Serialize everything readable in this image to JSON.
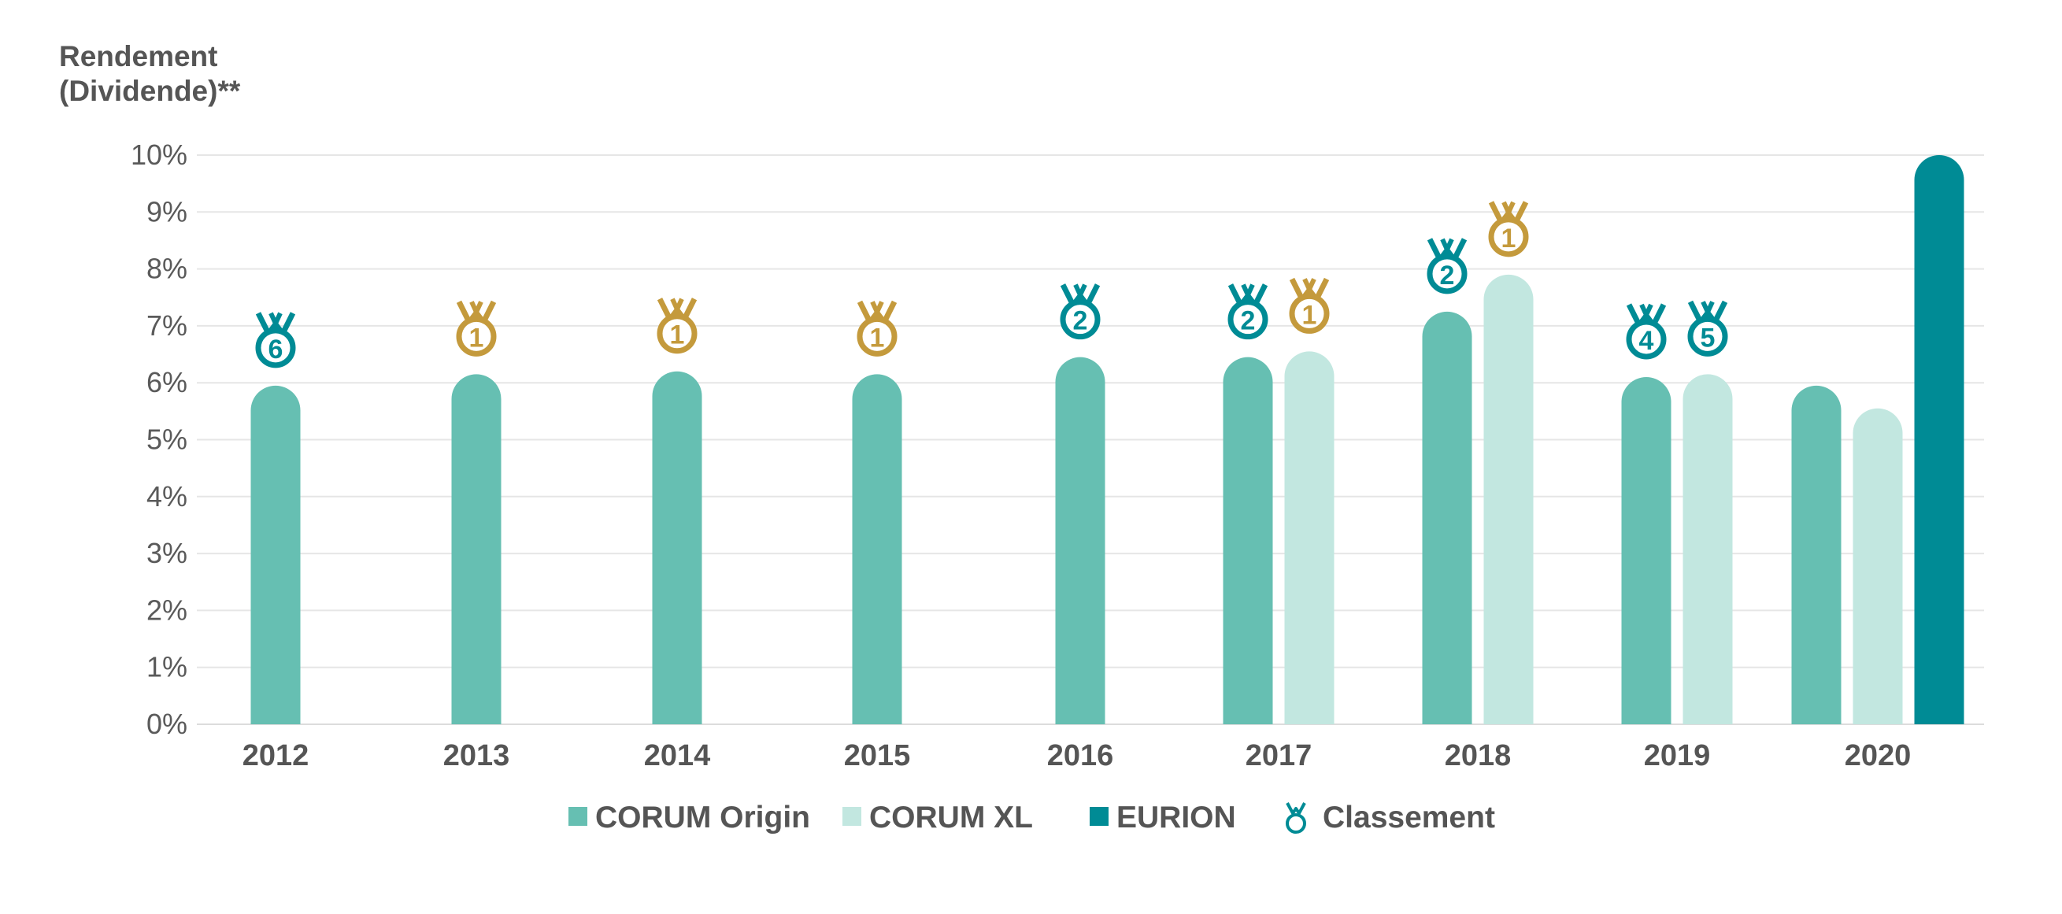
{
  "chart_data": {
    "type": "bar",
    "title": "",
    "ylabel_lines": [
      "Rendement",
      "(Dividende)**"
    ],
    "xlabel": "",
    "ylim": [
      0,
      10
    ],
    "yticks": [
      "0%",
      "1%",
      "2%",
      "3%",
      "4%",
      "5%",
      "6%",
      "7%",
      "8%",
      "9%",
      "10%"
    ],
    "grid": true,
    "legend_position": "bottom",
    "categories": [
      "2012",
      "2013",
      "2014",
      "2015",
      "2016",
      "2017",
      "2018",
      "2019",
      "2020"
    ],
    "series": [
      {
        "name": "CORUM Origin",
        "color": "#66bfb2",
        "values": [
          5.95,
          6.15,
          6.2,
          6.15,
          6.45,
          6.45,
          7.25,
          6.1,
          5.95
        ],
        "ranks": [
          "6",
          "1",
          "1",
          "1",
          "2",
          "2",
          "2",
          "4",
          null
        ]
      },
      {
        "name": "CORUM XL",
        "color": "#c2e7e0",
        "values": [
          null,
          null,
          null,
          null,
          null,
          6.55,
          7.9,
          6.15,
          5.55
        ],
        "ranks": [
          null,
          null,
          null,
          null,
          null,
          "1",
          "1",
          "5",
          null
        ]
      },
      {
        "name": "EURION",
        "color": "#008b95",
        "values": [
          null,
          null,
          null,
          null,
          null,
          null,
          null,
          null,
          10.0
        ],
        "ranks": [
          null,
          null,
          null,
          null,
          null,
          null,
          null,
          null,
          null
        ]
      }
    ],
    "legend_extra": {
      "name": "Classement",
      "icon": "medal-icon",
      "color": "#008b95"
    },
    "medal_colors": {
      "gold": "#c49a3c",
      "teal": "#008b95"
    }
  }
}
